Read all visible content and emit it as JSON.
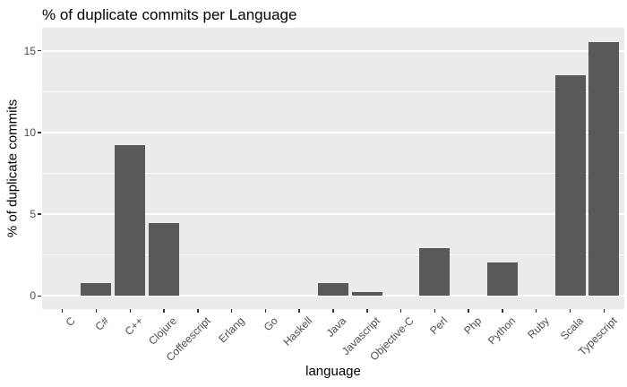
{
  "figure": {
    "title": "% of duplicate commits per Language"
  },
  "chart_data": {
    "type": "bar",
    "title": "% of duplicate commits per Language",
    "xlabel": "language",
    "ylabel": "% of duplicate commits",
    "categories": [
      "C",
      "C#",
      "C++",
      "Clojure",
      "Coffeescript",
      "Erlang",
      "Go",
      "Haskell",
      "Java",
      "Javascript",
      "Objective-C",
      "Perl",
      "Php",
      "Python",
      "Ruby",
      "Scala",
      "Typescript"
    ],
    "values": [
      0,
      0.8,
      9.2,
      4.45,
      0,
      0,
      0,
      0,
      0.8,
      0.25,
      0,
      2.9,
      0,
      2.05,
      0,
      13.5,
      15.5
    ],
    "ylim": [
      -0.8,
      16.4
    ],
    "yticks": [
      0,
      5,
      10,
      15
    ],
    "ytick_labels": [
      "0",
      "5",
      "10",
      "15"
    ],
    "yticks_minor": [
      2.5,
      7.5,
      12.5
    ],
    "grid": "on",
    "legend": "none",
    "bar_width_fraction": 0.9,
    "colors": {
      "bar": "#595959",
      "panel_background": "#EBEBEB",
      "grid_major": "#FFFFFF",
      "grid_minor": "#FFFFFF",
      "axis_text": "#4D4D4D",
      "tick_mark": "#333333",
      "title_text": "#000000",
      "figure_background": "#FFFFFF"
    }
  }
}
